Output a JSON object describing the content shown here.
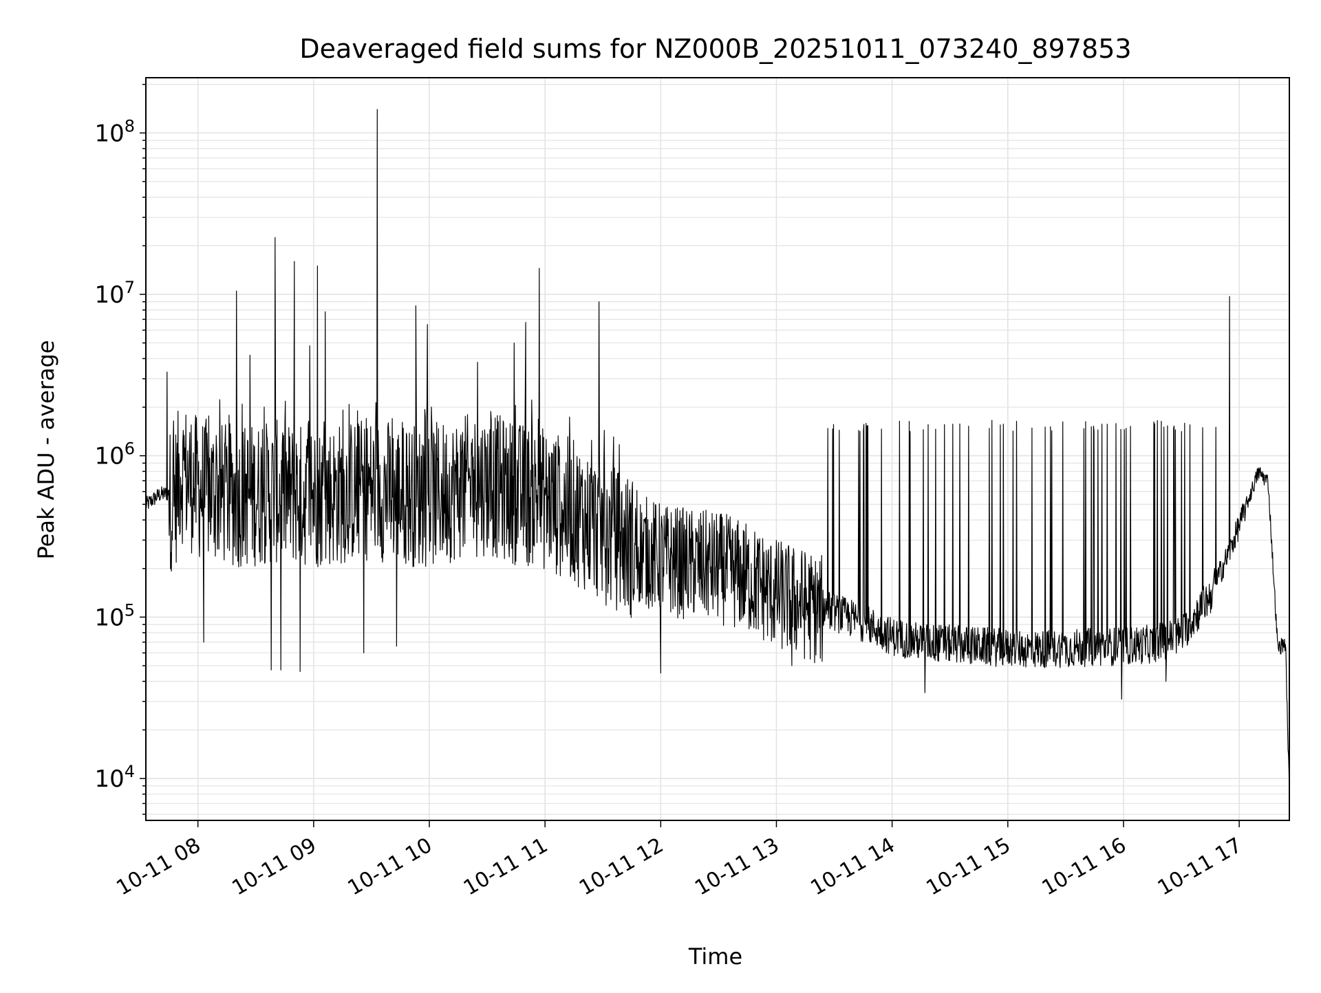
{
  "chart_data": {
    "type": "line",
    "title": "Deaveraged field sums for NZ000B_20251011_073240_897853",
    "xlabel": "Time",
    "ylabel": "Peak ADU - average",
    "yscale": "log",
    "ylim": [
      5500,
      220000000
    ],
    "xlim": [
      "2025-10-11 07:33",
      "2025-10-11 17:26"
    ],
    "grid": true,
    "line_color": "#000000",
    "x_ticks": [
      "10-11 08",
      "10-11 09",
      "10-11 10",
      "10-11 11",
      "10-11 12",
      "10-11 13",
      "10-11 14",
      "10-11 15",
      "10-11 16",
      "10-11 17"
    ],
    "x_tick_times": [
      "2025-10-11 08:00",
      "2025-10-11 09:00",
      "2025-10-11 10:00",
      "2025-10-11 11:00",
      "2025-10-11 12:00",
      "2025-10-11 13:00",
      "2025-10-11 14:00",
      "2025-10-11 15:00",
      "2025-10-11 16:00",
      "2025-10-11 17:00"
    ],
    "y_ticks": [
      10000,
      100000,
      1000000,
      10000000,
      100000000
    ],
    "y_tick_labels": [
      {
        "base": "10",
        "exp": "4"
      },
      {
        "base": "10",
        "exp": "5"
      },
      {
        "base": "10",
        "exp": "6"
      },
      {
        "base": "10",
        "exp": "7"
      },
      {
        "base": "10",
        "exp": "8"
      }
    ],
    "series": [
      {
        "name": "",
        "x": [
          "2025-10-11 07:33",
          "2025-10-11 07:40",
          "2025-10-11 07:48",
          "2025-10-11 07:51",
          "2025-10-11 08:00",
          "2025-10-11 08:10",
          "2025-10-11 08:20",
          "2025-10-11 08:30",
          "2025-10-11 08:40",
          "2025-10-11 08:50",
          "2025-10-11 09:00",
          "2025-10-11 09:15",
          "2025-10-11 09:30",
          "2025-10-11 09:45",
          "2025-10-11 10:00",
          "2025-10-11 10:15",
          "2025-10-11 10:30",
          "2025-10-11 10:45",
          "2025-10-11 11:00",
          "2025-10-11 11:15",
          "2025-10-11 11:30",
          "2025-10-11 11:45",
          "2025-10-11 12:00",
          "2025-10-11 12:15",
          "2025-10-11 12:30",
          "2025-10-11 12:45",
          "2025-10-11 13:00",
          "2025-10-11 13:15",
          "2025-10-11 13:30",
          "2025-10-11 13:45",
          "2025-10-11 14:00",
          "2025-10-11 14:15",
          "2025-10-11 14:30",
          "2025-10-11 14:45",
          "2025-10-11 15:00",
          "2025-10-11 15:15",
          "2025-10-11 15:30",
          "2025-10-11 15:45",
          "2025-10-11 16:00",
          "2025-10-11 16:15",
          "2025-10-11 16:30",
          "2025-10-11 16:45",
          "2025-10-11 16:55",
          "2025-10-11 17:05",
          "2025-10-11 17:10",
          "2025-10-11 17:15",
          "2025-10-11 17:20",
          "2025-10-11 17:24",
          "2025-10-11 17:26"
        ],
        "y": [
          500000,
          580000,
          600000,
          900000,
          700000,
          650000,
          620000,
          640000,
          660000,
          640000,
          620000,
          650000,
          700000,
          650000,
          620000,
          700000,
          750000,
          650000,
          600000,
          500000,
          380000,
          300000,
          250000,
          230000,
          220000,
          190000,
          150000,
          130000,
          110000,
          95000,
          78000,
          72000,
          70000,
          68000,
          66000,
          65000,
          66000,
          67000,
          68000,
          70000,
          80000,
          140000,
          260000,
          550000,
          800000,
          700000,
          65000,
          70000,
          8000
        ]
      }
    ],
    "spikes": [
      {
        "x": "2025-10-11 07:44",
        "y": 3300000
      },
      {
        "x": "2025-10-11 08:20",
        "y": 10500000
      },
      {
        "x": "2025-10-11 08:27",
        "y": 4200000
      },
      {
        "x": "2025-10-11 08:40",
        "y": 22500000
      },
      {
        "x": "2025-10-11 08:50",
        "y": 16000000
      },
      {
        "x": "2025-10-11 08:58",
        "y": 4800000
      },
      {
        "x": "2025-10-11 09:02",
        "y": 15000000
      },
      {
        "x": "2025-10-11 09:06",
        "y": 7800000
      },
      {
        "x": "2025-10-11 09:33",
        "y": 140000000
      },
      {
        "x": "2025-10-11 09:53",
        "y": 8500000
      },
      {
        "x": "2025-10-11 09:59",
        "y": 6500000
      },
      {
        "x": "2025-10-11 10:25",
        "y": 3800000
      },
      {
        "x": "2025-10-11 10:44",
        "y": 5000000
      },
      {
        "x": "2025-10-11 10:50",
        "y": 6700000
      },
      {
        "x": "2025-10-11 10:57",
        "y": 14500000
      },
      {
        "x": "2025-10-11 11:28",
        "y": 9000000
      },
      {
        "x": "2025-10-11 16:55",
        "y": 9700000
      }
    ],
    "dips": [
      {
        "x": "2025-10-11 08:03",
        "y": 70000
      },
      {
        "x": "2025-10-11 08:38",
        "y": 47000
      },
      {
        "x": "2025-10-11 08:43",
        "y": 47000
      },
      {
        "x": "2025-10-11 08:53",
        "y": 46000
      },
      {
        "x": "2025-10-11 09:26",
        "y": 60000
      },
      {
        "x": "2025-10-11 09:43",
        "y": 66000
      },
      {
        "x": "2025-10-11 12:00",
        "y": 45000
      },
      {
        "x": "2025-10-11 13:08",
        "y": 50000
      },
      {
        "x": "2025-10-11 14:17",
        "y": 34000
      },
      {
        "x": "2025-10-11 15:59",
        "y": 31000
      },
      {
        "x": "2025-10-11 16:22",
        "y": 40000
      }
    ]
  }
}
